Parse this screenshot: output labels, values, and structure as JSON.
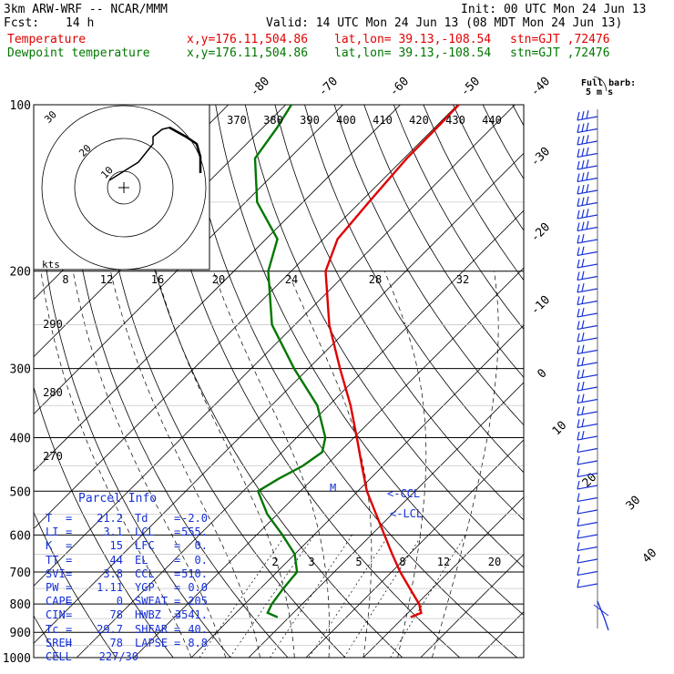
{
  "header": {
    "model": "3km ARW-WRF -- NCAR/MMM",
    "init": "Init: 00 UTC Mon 24 Jun 13",
    "fcst_label": "Fcst:",
    "fcst_value": "14 h",
    "valid": "Valid: 14 UTC Mon 24 Jun 13 (08 MDT Mon 24 Jun 13)"
  },
  "legend": [
    {
      "name": "Temperature",
      "color": "#e00000",
      "xy": "x,y=176.11,504.86",
      "latlon": "lat,lon= 39.13,-108.54",
      "stn": "stn=GJT ,72476"
    },
    {
      "name": "Dewpoint temperature",
      "color": "#007700",
      "xy": "x,y=176.11,504.86",
      "latlon": "lat,lon= 39.13,-108.54",
      "stn": "stn=GJT ,72476"
    }
  ],
  "barb_legend": {
    "line1": "Full barb:",
    "line2": "5 m s"
  },
  "hodograph": {
    "units": "kts",
    "ring_labels": [
      "10",
      "20",
      "30"
    ]
  },
  "parcel_info": {
    "title": "Parcel Info",
    "rows": [
      {
        "k1": "T",
        "v1": "21.2",
        "k2": "Td",
        "v2": "-2.0"
      },
      {
        "k1": "LI",
        "v1": "3.1",
        "k2": "LCL",
        "v2": "555."
      },
      {
        "k1": "K",
        "v1": "15",
        "k2": "LFC",
        "v2": "0."
      },
      {
        "k1": "TT",
        "v1": "44",
        "k2": "EL",
        "v2": "0."
      },
      {
        "k1": "SVI",
        "v1": "3.8",
        "k2": "CCL",
        "v2": "510."
      },
      {
        "k1": "PW",
        "v1": "1.11",
        "k2": "YGP",
        "v2": "0.0"
      },
      {
        "k1": "CAPE",
        "v1": "0",
        "k2": "SWEAT",
        "v2": "205"
      },
      {
        "k1": "CIN",
        "v1": "78",
        "k2": "HWBZ",
        "v2": "3541."
      },
      {
        "k1": "Tc",
        "v1": "29.7",
        "k2": "SHEAR",
        "v2": "40."
      },
      {
        "k1": "SREH",
        "v1": "78",
        "k2": "LAPSE",
        "v2": "8.8"
      },
      {
        "k1": "CELL",
        "v1": "227/30",
        "k2": "",
        "v2": ""
      }
    ]
  },
  "chart_data": {
    "type": "line",
    "xlabel": "",
    "ylabel": "",
    "y_scale": "log-pressure",
    "ylim": [
      1000,
      100
    ],
    "xlim_C_at_1000hPa": [
      -37.5,
      48
    ],
    "skew": "45 degrees",
    "pressure_labels": [
      100,
      200,
      300,
      400,
      500,
      600,
      700,
      800,
      900,
      1000
    ],
    "isotherm_labels": [
      "-80",
      "-70",
      "-60",
      "-50",
      "-40",
      "-30",
      "-20",
      "-10",
      "0",
      "10",
      "20",
      "30",
      "40"
    ],
    "dry_adiabat_labels": [
      "270",
      "280",
      "290"
    ],
    "theta_e_labels": [
      "370",
      "380",
      "390",
      "400",
      "410",
      "420",
      "430",
      "440"
    ],
    "lower_labels": [
      "8",
      "12",
      "16",
      "20",
      "24",
      "28",
      "32"
    ],
    "mixing_ratio_labels": [
      "2",
      "3",
      "5",
      "8",
      "12",
      "20"
    ],
    "level_labels": [
      "<-CCL",
      "<-LCL",
      "M"
    ],
    "series": [
      {
        "name": "Temperature",
        "color": "#e00000",
        "p": [
          845,
          830,
          800,
          750,
          700,
          650,
          600,
          550,
          500,
          450,
          400,
          350,
          300,
          250,
          200,
          175,
          150,
          125,
          110,
          100
        ],
        "t": [
          21.2,
          22.3,
          20.4,
          16.1,
          11.5,
          7.0,
          2.3,
          -2.8,
          -8.4,
          -13.7,
          -19.5,
          -26.2,
          -34.5,
          -44.0,
          -54.0,
          -57.5,
          -58.5,
          -59.5,
          -59.6,
          -59.8
        ]
      },
      {
        "name": "Dewpoint temperature",
        "color": "#007700",
        "p": [
          845,
          830,
          800,
          750,
          700,
          650,
          600,
          550,
          500,
          475,
          450,
          425,
          400,
          350,
          300,
          250,
          200,
          175,
          150,
          125,
          110,
          100
        ],
        "t": [
          -2.0,
          -4.5,
          -5.3,
          -6.0,
          -6.5,
          -10.0,
          -15.5,
          -21.8,
          -27.4,
          -26.0,
          -24.0,
          -23.0,
          -25.0,
          -32.0,
          -42.5,
          -54.0,
          -64.0,
          -68.0,
          -78.0,
          -86.0,
          -87.5,
          -89.0
        ]
      }
    ]
  }
}
